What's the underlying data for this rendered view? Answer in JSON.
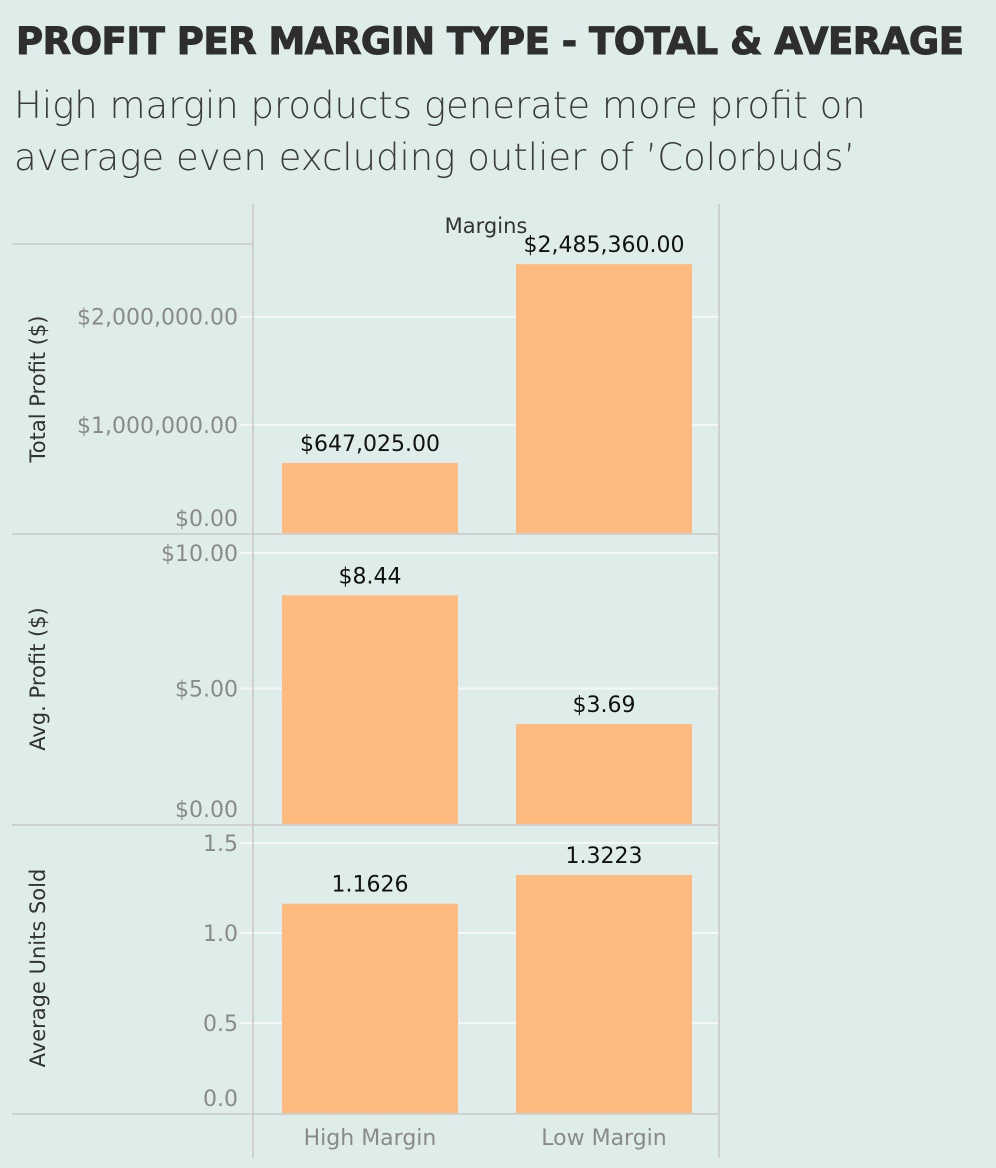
{
  "title": "PROFIT PER MARGIN TYPE - TOTAL & AVERAGE",
  "subtitle": "High margin products generate more profit on average even excluding outlier of ’Colorbuds’",
  "colors": {
    "bar": "#ffbb7f",
    "background": "#deecea",
    "gridline": "#f4f8f7",
    "axis_line": "#c8c8c8",
    "tick_label": "#8a8a8a",
    "axis_title": "#333333",
    "data_label": "#111111"
  },
  "chart_data": {
    "type": "bar",
    "column_header": "Margins",
    "categories": [
      "High Margin",
      "Low Margin"
    ],
    "grid": true,
    "panels": [
      {
        "ylabel": "Total Profit ($)",
        "values": [
          647025,
          2485360
        ],
        "data_labels": [
          "$647,025.00",
          "$2,485,360.00"
        ],
        "ylim": [
          0,
          2663000
        ],
        "ticks": [
          0,
          1000000,
          2000000
        ],
        "tick_labels": [
          "$0.00",
          "$1,000,000.00",
          "$2,000,000.00"
        ]
      },
      {
        "ylabel": "Avg. Profit ($)",
        "values": [
          8.44,
          3.69
        ],
        "data_labels": [
          "$8.44",
          "$3.69"
        ],
        "ylim": [
          0,
          10
        ],
        "ticks": [
          0,
          5,
          10
        ],
        "tick_labels": [
          "$0.00",
          "$5.00",
          "$10.00"
        ]
      },
      {
        "ylabel": "Average Units Sold",
        "values": [
          1.1626,
          1.3223
        ],
        "data_labels": [
          "1.1626",
          "1.3223"
        ],
        "ylim": [
          0,
          1.5
        ],
        "ticks": [
          0,
          0.5,
          1.0,
          1.5
        ],
        "tick_labels": [
          "0.0",
          "0.5",
          "1.0",
          "1.5"
        ]
      }
    ]
  }
}
